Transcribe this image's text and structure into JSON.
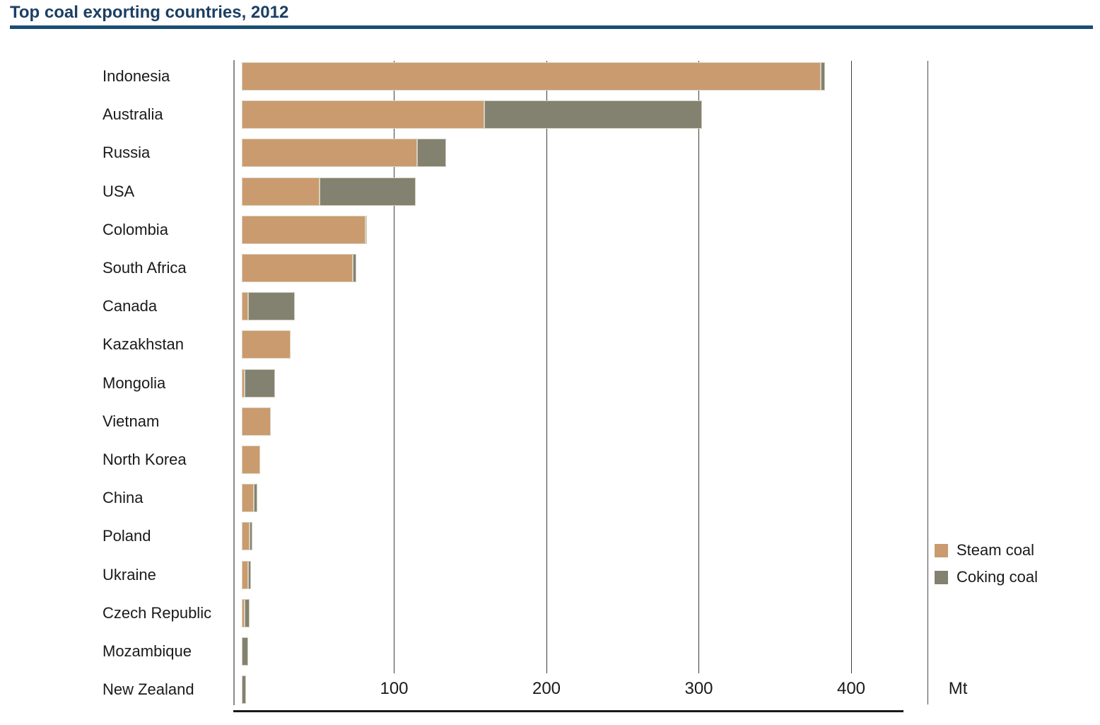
{
  "title": "Top coal exporting countries, 2012",
  "chart_data": {
    "type": "bar",
    "orientation": "horizontal",
    "stacked": true,
    "title": "Top coal exporting countries, 2012",
    "unit": "Mt",
    "xlabel": "Mt",
    "xlim": [
      0,
      450
    ],
    "grid": true,
    "legend_position": "right",
    "categories": [
      "Indonesia",
      "Australia",
      "Russia",
      "USA",
      "Colombia",
      "South Africa",
      "Canada",
      "Kazakhstan",
      "Mongolia",
      "Vietnam",
      "North Korea",
      "China",
      "Poland",
      "Ukraine",
      "Czech Republic",
      "Mozambique",
      "New Zealand"
    ],
    "series": [
      {
        "name": "Steam coal",
        "color": "#c99b6e",
        "values": [
          380,
          159,
          115,
          51,
          81,
          73,
          4,
          32,
          2,
          19,
          12,
          8,
          5,
          4,
          2,
          0,
          0
        ]
      },
      {
        "name": "Coking coal",
        "color": "#83816f",
        "values": [
          3,
          143,
          19,
          63,
          1,
          2,
          31,
          0,
          20,
          0,
          0,
          2,
          2,
          2,
          3,
          4,
          3
        ]
      }
    ],
    "totals": [
      383,
      302,
      134,
      114,
      82,
      75,
      35,
      32,
      22,
      19,
      12,
      10,
      7,
      6,
      5,
      4,
      3
    ],
    "x_axis": {
      "tick_labels": [
        "100",
        "200",
        "300",
        "400"
      ],
      "tick_values": [
        100,
        200,
        300,
        400
      ],
      "max": 450,
      "unit_label": "Mt"
    }
  },
  "legend": {
    "items": [
      {
        "label": "Steam coal",
        "color": "#c99b6e"
      },
      {
        "label": "Coking coal",
        "color": "#83816f"
      }
    ]
  },
  "colors": {
    "steam": "#c99b6e",
    "coking": "#83816f",
    "title_text": "#1c3f63",
    "title_rule": "#1a4e74",
    "gridline": "#3d3d3d",
    "axis": "#8a8a8a"
  }
}
